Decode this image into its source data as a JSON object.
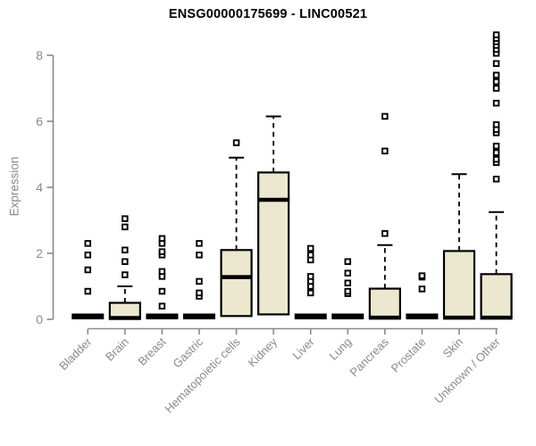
{
  "colors": {
    "background": "#ffffff",
    "box_fill": "#ece8d0",
    "box_border": "#000000",
    "median": "#000000",
    "whisker": "#000000",
    "outlier_fill": "#ffffff",
    "outlier_border": "#000000",
    "axis": "#8a8a8a",
    "tick_label": "#8a8a8a",
    "title": "#000000"
  },
  "chart_data": {
    "type": "box",
    "title": "ENSG00000175699 - LINC00521",
    "ylabel": "Expression",
    "xlabel": "",
    "ylim": [
      0,
      8.7
    ],
    "yticks": [
      0,
      2,
      4,
      6,
      8
    ],
    "grid": false,
    "legend": false,
    "categories": [
      "Bladder",
      "Brain",
      "Breast",
      "Gastric",
      "Hematopoietic cells",
      "Kidney",
      "Liver",
      "Lung",
      "Pancreas",
      "Prostate",
      "Skin",
      "Unknown / Other"
    ],
    "boxes": [
      {
        "category": "Bladder",
        "low": 0,
        "q1": 0,
        "median": 0,
        "q3": 0,
        "high": 0,
        "outliers": [
          0.85,
          1.5,
          1.95,
          2.3
        ]
      },
      {
        "category": "Brain",
        "low": 0,
        "q1": 0.04,
        "median": 0.04,
        "q3": 0.5,
        "high": 1.0,
        "outliers": [
          1.35,
          1.75,
          2.1,
          2.8,
          3.05
        ]
      },
      {
        "category": "Breast",
        "low": 0,
        "q1": 0,
        "median": 0,
        "q3": 0,
        "high": 0,
        "outliers": [
          0.4,
          0.85,
          1.3,
          1.45,
          1.95,
          2.05,
          2.3,
          2.45
        ]
      },
      {
        "category": "Gastric",
        "low": 0,
        "q1": 0,
        "median": 0,
        "q3": 0,
        "high": 0,
        "outliers": [
          0.7,
          0.8,
          1.15,
          1.95,
          2.3
        ]
      },
      {
        "category": "Hematopoietic cells",
        "low": 0,
        "q1": 0.1,
        "median": 1.28,
        "q3": 2.1,
        "high": 4.9,
        "outliers": [
          5.35
        ]
      },
      {
        "category": "Kidney",
        "low": 0.15,
        "q1": 0.15,
        "median": 3.62,
        "q3": 4.45,
        "high": 6.15,
        "outliers": []
      },
      {
        "category": "Liver",
        "low": 0,
        "q1": 0,
        "median": 0,
        "q3": 0,
        "high": 0,
        "outliers": [
          0.8,
          1.0,
          1.15,
          1.3,
          1.8,
          1.95,
          2.15
        ]
      },
      {
        "category": "Lung",
        "low": 0,
        "q1": 0,
        "median": 0,
        "q3": 0,
        "high": 0,
        "outliers": [
          0.78,
          0.85,
          1.1,
          1.4,
          1.75
        ]
      },
      {
        "category": "Pancreas",
        "low": 0,
        "q1": 0.05,
        "median": 0.05,
        "q3": 0.93,
        "high": 2.25,
        "outliers": [
          2.6,
          5.1,
          6.15
        ]
      },
      {
        "category": "Prostate",
        "low": 0,
        "q1": 0,
        "median": 0,
        "q3": 0,
        "high": 0,
        "outliers": [
          0.92,
          1.28,
          1.32
        ]
      },
      {
        "category": "Skin",
        "low": 0,
        "q1": 0.05,
        "median": 0.05,
        "q3": 2.07,
        "high": 4.4,
        "outliers": []
      },
      {
        "category": "Unknown / Other",
        "low": 0,
        "q1": 0.05,
        "median": 0.05,
        "q3": 1.37,
        "high": 3.25,
        "outliers": [
          4.25,
          4.75,
          4.85,
          5.05,
          5.25,
          5.65,
          5.75,
          5.9,
          6.55,
          7.0,
          7.2,
          7.4,
          7.75,
          8.06,
          8.18,
          8.3,
          8.41,
          8.51,
          8.62
        ]
      }
    ]
  }
}
